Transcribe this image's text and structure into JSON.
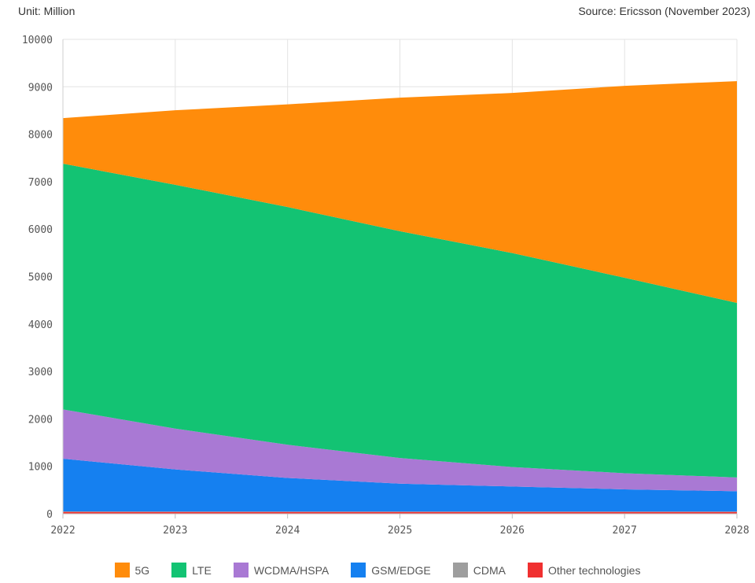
{
  "header": {
    "unit": "Unit: Million",
    "source": "Source: Ericsson (November 2023)"
  },
  "chart_data": {
    "type": "area",
    "stacked": true,
    "x": [
      "2022",
      "2023",
      "2024",
      "2025",
      "2026",
      "2027",
      "2028"
    ],
    "ylim": [
      0,
      10000
    ],
    "yticks": [
      0,
      1000,
      2000,
      3000,
      4000,
      5000,
      6000,
      7000,
      8000,
      9000,
      10000
    ],
    "grid": true,
    "legend_position": "bottom",
    "series": [
      {
        "name": "Other technologies",
        "color": "#f03030",
        "values": [
          40,
          40,
          40,
          40,
          40,
          40,
          40
        ]
      },
      {
        "name": "CDMA",
        "color": "#9e9e9e",
        "values": [
          10,
          5,
          5,
          5,
          5,
          5,
          5
        ]
      },
      {
        "name": "GSM/EDGE",
        "color": "#1580f0",
        "values": [
          1110,
          890,
          710,
          590,
          530,
          470,
          430
        ]
      },
      {
        "name": "WCDMA/HSPA",
        "color": "#a979d4",
        "values": [
          1040,
          860,
          700,
          540,
          410,
          340,
          290
        ]
      },
      {
        "name": "LTE",
        "color": "#13c373",
        "values": [
          5180,
          5140,
          5010,
          4780,
          4510,
          4120,
          3680
        ]
      },
      {
        "name": "5G",
        "color": "#ff8c0b",
        "values": [
          960,
          1570,
          2165,
          2815,
          3375,
          4045,
          4675
        ]
      }
    ],
    "legend_order": [
      "5G",
      "LTE",
      "WCDMA/HSPA",
      "GSM/EDGE",
      "CDMA",
      "Other technologies"
    ]
  }
}
